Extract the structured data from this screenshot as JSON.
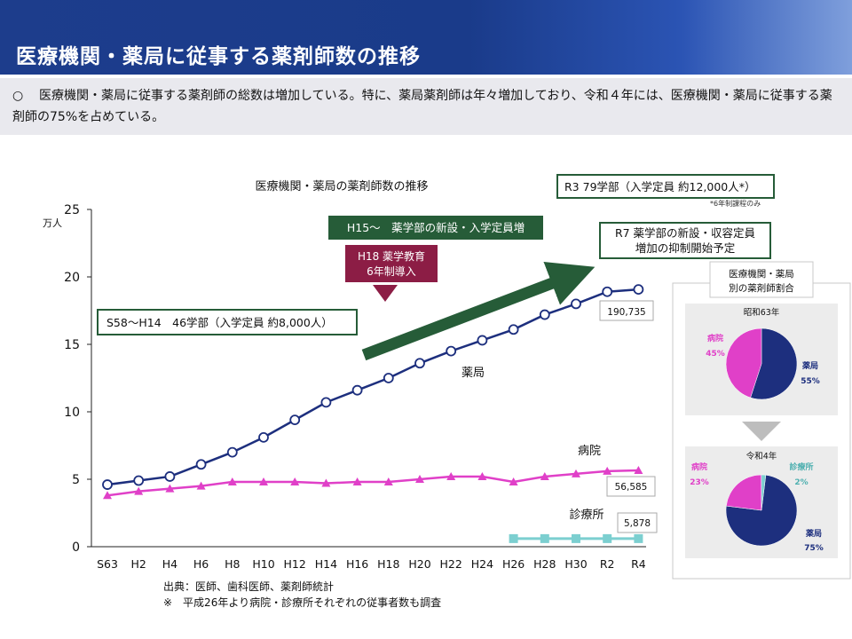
{
  "header": {
    "title": "医療機関・薬局に従事する薬剤師数の推移",
    "bullet": "○",
    "summary": "医療機関・薬局に従事する薬剤師の総数は増加している。特に、薬局薬剤師は年々増加しており、令和４年には、医療機関・薬局に従事する薬剤師の75%を占めている。"
  },
  "colors": {
    "header_bg": "#1d3d8c",
    "pharmacy": "#1d2f7e",
    "hospital": "#e040c8",
    "clinic": "#7ccfd0",
    "dark_green": "#265c38",
    "maroon": "#8c1d45",
    "pie_gray": "#bdbdbd"
  },
  "chart_data": [
    {
      "type": "line",
      "title": "医療機関・薬局の薬剤師数の推移",
      "ylabel": "万人",
      "ylim": [
        0,
        25
      ],
      "yticks": [
        "0",
        "5",
        "10",
        "15",
        "20",
        "25"
      ],
      "categories": [
        "S63",
        "H2",
        "H4",
        "H6",
        "H8",
        "H10",
        "H12",
        "H14",
        "H16",
        "H18",
        "H20",
        "H22",
        "H24",
        "H26",
        "H28",
        "H30",
        "R2",
        "R4"
      ],
      "series": [
        {
          "name": "薬局",
          "marker": "circle",
          "values": [
            4.6,
            4.9,
            5.2,
            6.1,
            7.0,
            8.1,
            9.4,
            10.7,
            11.6,
            12.5,
            13.6,
            14.5,
            15.3,
            16.1,
            17.2,
            18.0,
            18.9,
            19.07
          ]
        },
        {
          "name": "病院",
          "marker": "triangle",
          "values": [
            3.8,
            4.1,
            4.3,
            4.5,
            4.8,
            4.8,
            4.8,
            4.7,
            4.8,
            4.8,
            5.0,
            5.2,
            5.2,
            4.8,
            5.2,
            5.4,
            5.6,
            5.66
          ]
        },
        {
          "name": "診療所",
          "marker": "square",
          "values": [
            null,
            null,
            null,
            null,
            null,
            null,
            null,
            null,
            null,
            null,
            null,
            null,
            null,
            0.6,
            0.6,
            0.6,
            0.6,
            0.6
          ]
        }
      ],
      "end_labels": {
        "pharmacy": "190,735",
        "hospital": "56,585",
        "clinic": "5,878"
      },
      "annotations": {
        "s58": "S58～H14　46学部（入学定員 約8,000人）",
        "h15": "H15～　薬学部の新設・入学定員増",
        "h18_line1": "H18 薬学教育",
        "h18_line2": "6年制導入",
        "r3": "R3 79学部（入学定員 約12,000人*）",
        "r3_note": "*6年制課程のみ",
        "r7_line1": "R7 薬学部の新設・収容定員",
        "r7_line2": "増加の抑制開始予定"
      },
      "source_line1": "出典：医師、歯科医師、薬剤師統計",
      "source_line2": "※　平成26年より病院・診療所それぞれの従事者数も調査"
    },
    {
      "type": "pie",
      "title": "昭和63年",
      "slices": [
        {
          "label": "薬局",
          "value": 55,
          "text": "55%"
        },
        {
          "label": "病院",
          "value": 45,
          "text": "45%"
        }
      ]
    },
    {
      "type": "pie",
      "title": "令和4年",
      "slices": [
        {
          "label": "薬局",
          "value": 75,
          "text": "75%"
        },
        {
          "label": "病院",
          "value": 23,
          "text": "23%"
        },
        {
          "label": "診療所",
          "value": 2,
          "text": "2%"
        }
      ]
    }
  ],
  "side_panel": {
    "title_line1": "医療機関・薬局",
    "title_line2": "別の薬剤師割合"
  }
}
